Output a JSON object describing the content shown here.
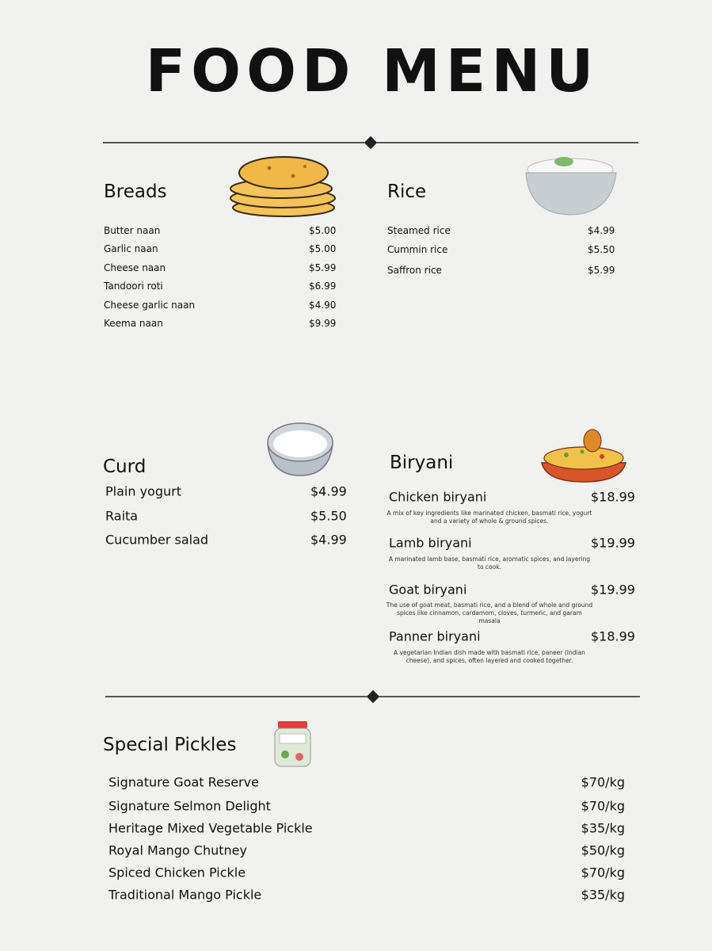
{
  "title": "FOOD MENU",
  "sections": [
    {
      "title": "Breads",
      "items": [
        {
          "name": "Butter naan",
          "price": "$5.00"
        },
        {
          "name": "Garlic naan",
          "price": "$5.00"
        },
        {
          "name": "Cheese naan",
          "price": "$5.99"
        },
        {
          "name": "Tandoori roti",
          "price": "$6.99"
        },
        {
          "name": "Cheese garlic naan",
          "price": "$4.90"
        },
        {
          "name": "Keema naan",
          "price": "$9.99"
        }
      ]
    },
    {
      "title": "Rice",
      "items": [
        {
          "name": "Steamed rice",
          "price": "$4.99"
        },
        {
          "name": "Cummin rice",
          "price": "$5.50"
        },
        {
          "name": "Saffron rice",
          "price": "$5.99"
        }
      ]
    },
    {
      "title": "Curd",
      "items": [
        {
          "name": "Plain yogurt",
          "price": "$4.99"
        },
        {
          "name": "Raita",
          "price": "$5.50"
        },
        {
          "name": "Cucumber salad",
          "price": "$4.99"
        }
      ]
    },
    {
      "title": "Biryani",
      "items": [
        {
          "name": "Chicken biryani",
          "price": "$18.99",
          "description": "A mix of key ingredients like marinated chicken, basmati rice, yogurt and a variety of whole & ground spices."
        },
        {
          "name": "Lamb biryani",
          "price": "$19.99",
          "description": "A marinated lamb base, basmati rice, aromatic spices, and layering to cook."
        },
        {
          "name": "Goat biryani",
          "price": "$19.99",
          "description": "The use of goat meat, basmati rice, and a blend of whole and ground spices like cinnamon, cardamom, cloves, turmeric, and garam masala"
        },
        {
          "name": "Panner biryani",
          "price": "$18.99",
          "description": "A vegetarian Indian dish made with basmati rice, paneer (Indian cheese), and spices, often layered and cooked together."
        }
      ]
    },
    {
      "title": "Special Pickles",
      "items": [
        {
          "name": "Signature Goat Reserve",
          "price": "$70/kg"
        },
        {
          "name": "Signature Selmon Delight",
          "price": "$70/kg"
        },
        {
          "name": "Heritage Mixed Vegetable Pickle",
          "price": "$35/kg"
        },
        {
          "name": "Royal Mango Chutney",
          "price": "$50/kg"
        },
        {
          "name": "Spiced Chicken Pickle",
          "price": "$70/kg"
        },
        {
          "name": "Traditional Mango Pickle",
          "price": "$35/kg"
        }
      ]
    }
  ]
}
